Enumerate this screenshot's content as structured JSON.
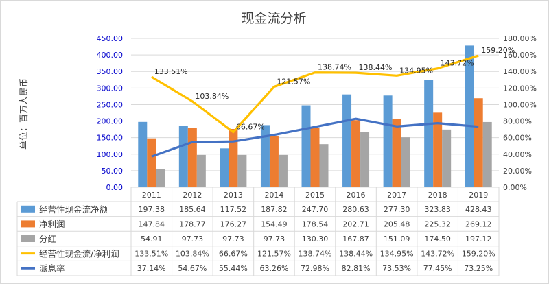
{
  "chart_data": {
    "type": "bar",
    "title": "现金流分析",
    "ylabel": "单位：百万人民币",
    "categories": [
      "2011",
      "2012",
      "2013",
      "2014",
      "2015",
      "2016",
      "2017",
      "2018",
      "2019"
    ],
    "ylim": [
      0,
      450
    ],
    "y2lim": [
      0,
      180
    ],
    "y_ticks": [
      "0.00",
      "50.00",
      "100.00",
      "150.00",
      "200.00",
      "250.00",
      "300.00",
      "350.00",
      "400.00",
      "450.00"
    ],
    "y2_ticks": [
      "0.00%",
      "20.00%",
      "40.00%",
      "60.00%",
      "80.00%",
      "100.00%",
      "120.00%",
      "140.00%",
      "160.00%",
      "180.00%"
    ],
    "legend_placement": "data-table",
    "series": [
      {
        "name": "经营性现金流净额",
        "kind": "bar",
        "axis": "left",
        "color": "#5b9bd5",
        "values": [
          197.38,
          185.64,
          117.52,
          187.82,
          247.7,
          280.63,
          277.3,
          323.83,
          428.43
        ],
        "table": [
          "197.38",
          "185.64",
          "117.52",
          "187.82",
          "247.70",
          "280.63",
          "277.30",
          "323.83",
          "428.43"
        ]
      },
      {
        "name": "净利润",
        "kind": "bar",
        "axis": "left",
        "color": "#ed7d31",
        "values": [
          147.84,
          178.77,
          176.27,
          154.49,
          178.54,
          202.71,
          205.48,
          225.32,
          269.12
        ],
        "table": [
          "147.84",
          "178.77",
          "176.27",
          "154.49",
          "178.54",
          "202.71",
          "205.48",
          "225.32",
          "269.12"
        ]
      },
      {
        "name": "分红",
        "kind": "bar",
        "axis": "left",
        "color": "#a5a5a5",
        "values": [
          54.91,
          97.73,
          97.73,
          97.73,
          130.3,
          167.87,
          151.09,
          174.5,
          197.12
        ],
        "table": [
          "54.91",
          "97.73",
          "97.73",
          "97.73",
          "130.30",
          "167.87",
          "151.09",
          "174.50",
          "197.12"
        ]
      },
      {
        "name": "经营性现金流/净利润",
        "kind": "line",
        "axis": "right",
        "color": "#ffc000",
        "values": [
          133.51,
          103.84,
          66.67,
          121.57,
          138.74,
          138.44,
          134.95,
          143.72,
          159.2
        ],
        "table": [
          "133.51%",
          "103.84%",
          "66.67%",
          "121.57%",
          "138.74%",
          "138.44%",
          "134.95%",
          "143.72%",
          "159.20%"
        ],
        "labels": [
          "133.51%",
          "103.84%",
          "66.67%",
          "121.57%",
          "138.74%",
          "138.44%",
          "134.95%",
          "143.72%",
          "159.20%"
        ]
      },
      {
        "name": "派息率",
        "kind": "line",
        "axis": "right",
        "color": "#4472c4",
        "values": [
          37.14,
          54.67,
          55.44,
          63.26,
          72.98,
          82.81,
          73.53,
          77.45,
          73.25
        ],
        "table": [
          "37.14%",
          "54.67%",
          "55.44%",
          "63.26%",
          "72.98%",
          "82.81%",
          "73.53%",
          "77.45%",
          "73.25%"
        ]
      }
    ],
    "colors": {
      "left_axis_text": "#0000cc",
      "grid": "#d9d9d9",
      "text": "#404040"
    }
  }
}
